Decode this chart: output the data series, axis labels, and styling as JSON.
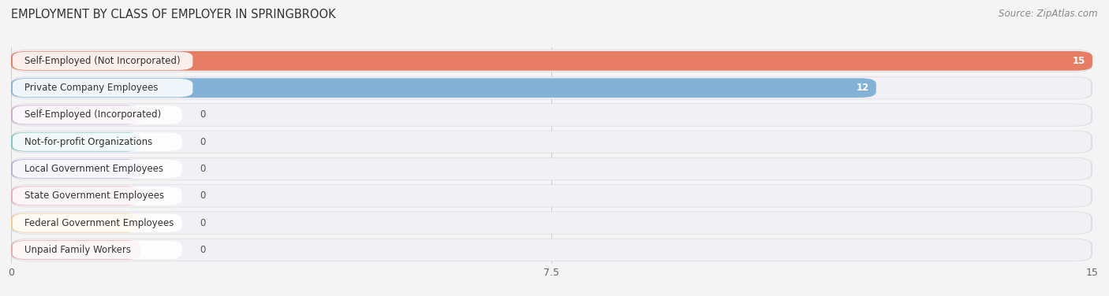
{
  "title": "EMPLOYMENT BY CLASS OF EMPLOYER IN SPRINGBROOK",
  "source": "Source: ZipAtlas.com",
  "categories": [
    "Self-Employed (Not Incorporated)",
    "Private Company Employees",
    "Self-Employed (Incorporated)",
    "Not-for-profit Organizations",
    "Local Government Employees",
    "State Government Employees",
    "Federal Government Employees",
    "Unpaid Family Workers"
  ],
  "values": [
    15,
    12,
    0,
    0,
    0,
    0,
    0,
    0
  ],
  "bar_colors": [
    "#e8735a",
    "#7aadd4",
    "#c9a0c8",
    "#6dbfb8",
    "#a9a8d4",
    "#f4a0b5",
    "#f5c98a",
    "#f0a0a0"
  ],
  "xlim": [
    0,
    15
  ],
  "xticks": [
    0,
    7.5,
    15
  ],
  "background_color": "#f4f4f4",
  "row_bg": "#e8e8ee",
  "row_inner_bg": "#f5f5f8",
  "title_fontsize": 10.5,
  "label_fontsize": 8.5,
  "value_fontsize": 8.5,
  "source_fontsize": 8.5
}
